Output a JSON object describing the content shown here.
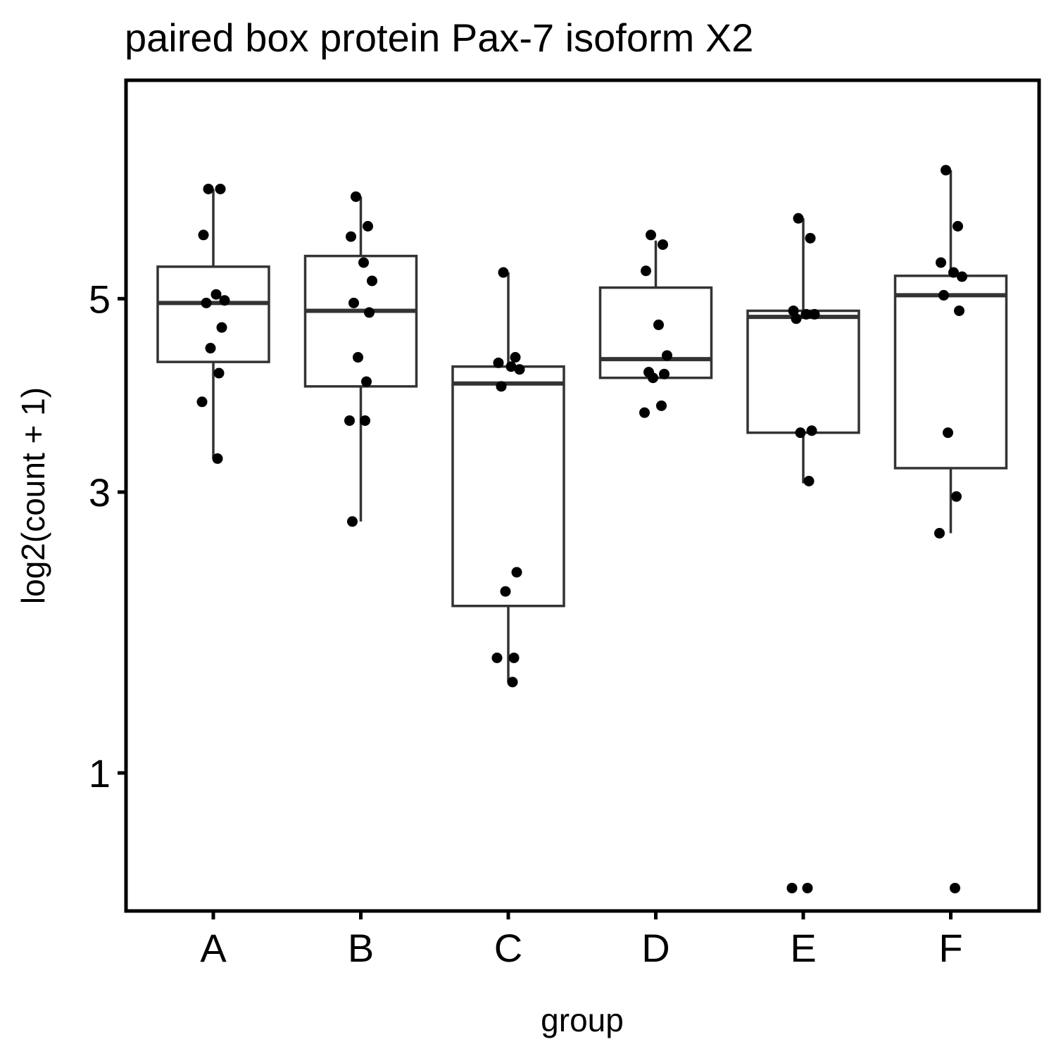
{
  "chart_data": {
    "type": "box",
    "title": "paired box protein Pax-7 isoform X2",
    "xlabel": "group",
    "ylabel": "log2(count + 1)",
    "y_scale": "sqrt",
    "y_ticks": [
      1,
      3,
      5
    ],
    "ylim": [
      0.41,
      7.87
    ],
    "categories": [
      "A",
      "B",
      "C",
      "D",
      "E",
      "F"
    ],
    "boxes": [
      {
        "group": "A",
        "lower_whisker": 3.31,
        "q1": 4.29,
        "median": 4.95,
        "q3": 5.38,
        "upper_whisker": 6.36
      },
      {
        "group": "B",
        "lower_whisker": 2.74,
        "q1": 4.03,
        "median": 4.86,
        "q3": 5.51,
        "upper_whisker": 6.26
      },
      {
        "group": "C",
        "lower_whisker": 1.53,
        "q1": 2.06,
        "median": 4.06,
        "q3": 4.24,
        "upper_whisker": 5.31
      },
      {
        "group": "D",
        "lower_whisker": 4.12,
        "q1": 4.12,
        "median": 4.32,
        "q3": 5.13,
        "upper_whisker": 5.7
      },
      {
        "group": "E",
        "lower_whisker": 3.08,
        "q1": 3.56,
        "median": 4.79,
        "q3": 4.86,
        "upper_whisker": 5.98
      },
      {
        "group": "F",
        "lower_whisker": 2.64,
        "q1": 3.22,
        "median": 5.04,
        "q3": 5.27,
        "upper_whisker": 6.61
      }
    ],
    "points": {
      "A": [
        6.36,
        6.36,
        5.77,
        5.05,
        4.98,
        4.95,
        4.67,
        4.44,
        4.17,
        3.87,
        3.31
      ],
      "B": [
        6.26,
        5.88,
        5.75,
        5.43,
        5.21,
        4.95,
        4.84,
        4.34,
        4.08,
        3.68,
        3.68,
        2.74
      ],
      "C": [
        5.31,
        4.34,
        4.28,
        4.24,
        4.21,
        4.03,
        2.32,
        2.17,
        1.69,
        1.69,
        1.53
      ],
      "D": [
        5.77,
        5.65,
        5.33,
        4.7,
        4.36,
        4.18,
        4.16,
        4.12,
        3.83,
        3.76
      ],
      "E": [
        5.98,
        5.73,
        4.86,
        4.82,
        4.82,
        4.77,
        3.58,
        3.56,
        3.1,
        0.49,
        0.49
      ],
      "F": [
        6.61,
        5.88,
        5.43,
        5.31,
        5.26,
        5.04,
        4.86,
        3.56,
        2.96,
        2.64,
        0.49
      ]
    },
    "colors": {
      "box_stroke": "#333333",
      "points": "#000000",
      "panel": "#000000"
    },
    "grid": false,
    "legend": "none"
  }
}
